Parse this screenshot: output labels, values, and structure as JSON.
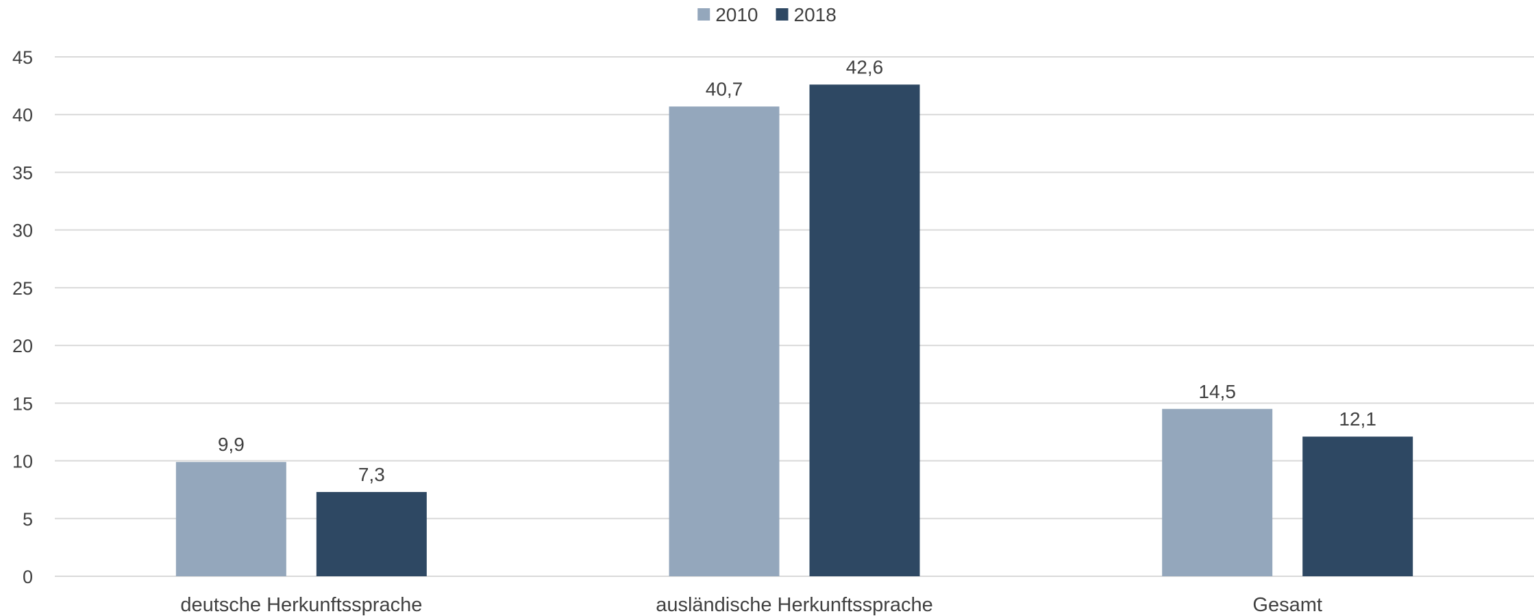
{
  "chart_data": {
    "type": "bar",
    "title": "",
    "xlabel": "",
    "ylabel": "",
    "categories": [
      "deutsche Herkunftssprache",
      "ausländische Herkunftssprache",
      "Gesamt"
    ],
    "series": [
      {
        "name": "2010",
        "values": [
          9.9,
          40.7,
          14.5
        ],
        "labels": [
          "9,9",
          "40,7",
          "14,5"
        ],
        "color": "#94a7bc"
      },
      {
        "name": "2018",
        "values": [
          7.3,
          42.6,
          12.1
        ],
        "labels": [
          "7,3",
          "42,6",
          "12,1"
        ],
        "color": "#2e4863"
      }
    ],
    "ylim": [
      0,
      45
    ],
    "yticks": [
      0,
      5,
      10,
      15,
      20,
      25,
      30,
      35,
      40,
      45
    ],
    "ytick_labels": [
      "0",
      "5",
      "10",
      "15",
      "20",
      "25",
      "30",
      "35",
      "40",
      "45"
    ],
    "grid": true,
    "grid_color": "#d9d9d9",
    "legend": {
      "position": "top-center"
    }
  }
}
